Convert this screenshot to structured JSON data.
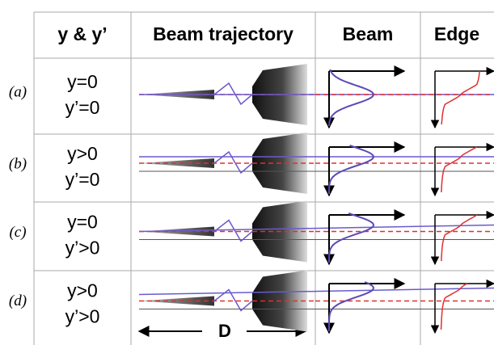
{
  "table": {
    "headers": [
      "y & y’",
      "Beam trajectory",
      "Beam",
      "Edge"
    ],
    "rows": [
      {
        "label": "(a)",
        "cells": [
          "y=0",
          "y’=0"
        ]
      },
      {
        "label": "(b)",
        "cells": [
          "y>0",
          "y’=0"
        ]
      },
      {
        "label": "(c)",
        "cells": [
          "y=0",
          "y’>0"
        ]
      },
      {
        "label": "(d)",
        "cells": [
          "y>0",
          "y’>0"
        ]
      }
    ],
    "annotation": "D"
  }
}
